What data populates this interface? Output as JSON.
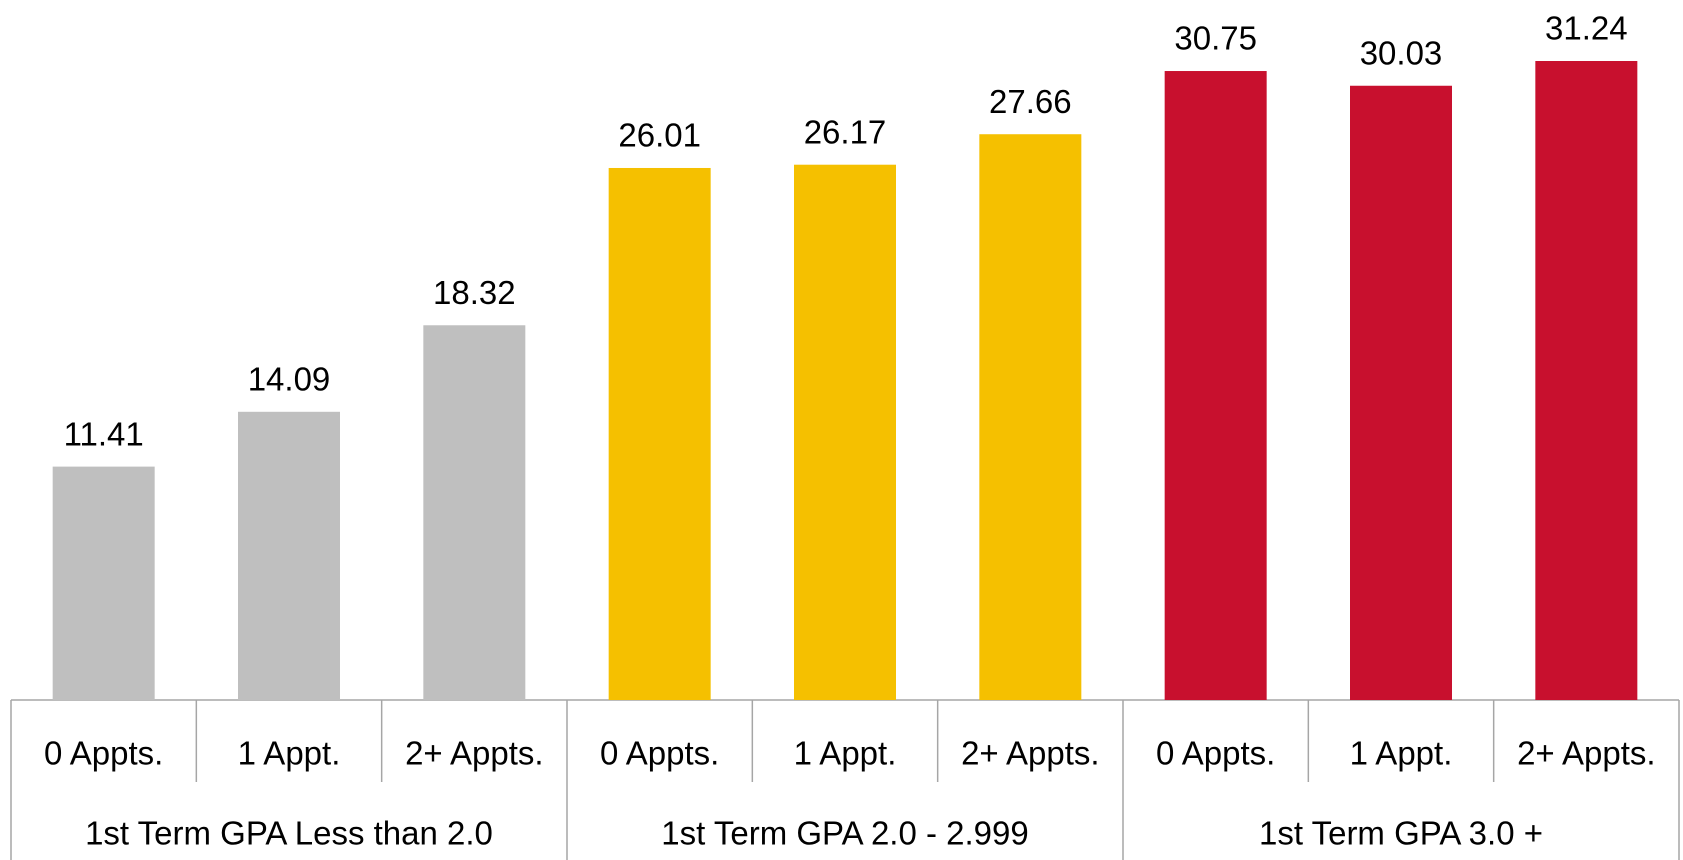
{
  "chart_data": {
    "type": "bar",
    "groups": [
      {
        "name": "1st Term GPA Less than 2.0",
        "color": "#bfbfbf",
        "categories": [
          "0 Appts.",
          "1 Appt.",
          "2+ Appts."
        ],
        "values": [
          11.41,
          14.09,
          18.32
        ]
      },
      {
        "name": "1st Term GPA 2.0 - 2.999",
        "color": "#f5c000",
        "categories": [
          "0 Appts.",
          "1 Appt.",
          "2+ Appts."
        ],
        "values": [
          26.01,
          26.17,
          27.66
        ]
      },
      {
        "name": "1st Term GPA 3.0 +",
        "color": "#c8102e",
        "categories": [
          "0 Appts.",
          "1 Appt.",
          "2+ Appts."
        ],
        "values": [
          30.75,
          30.03,
          31.24
        ]
      }
    ]
  }
}
